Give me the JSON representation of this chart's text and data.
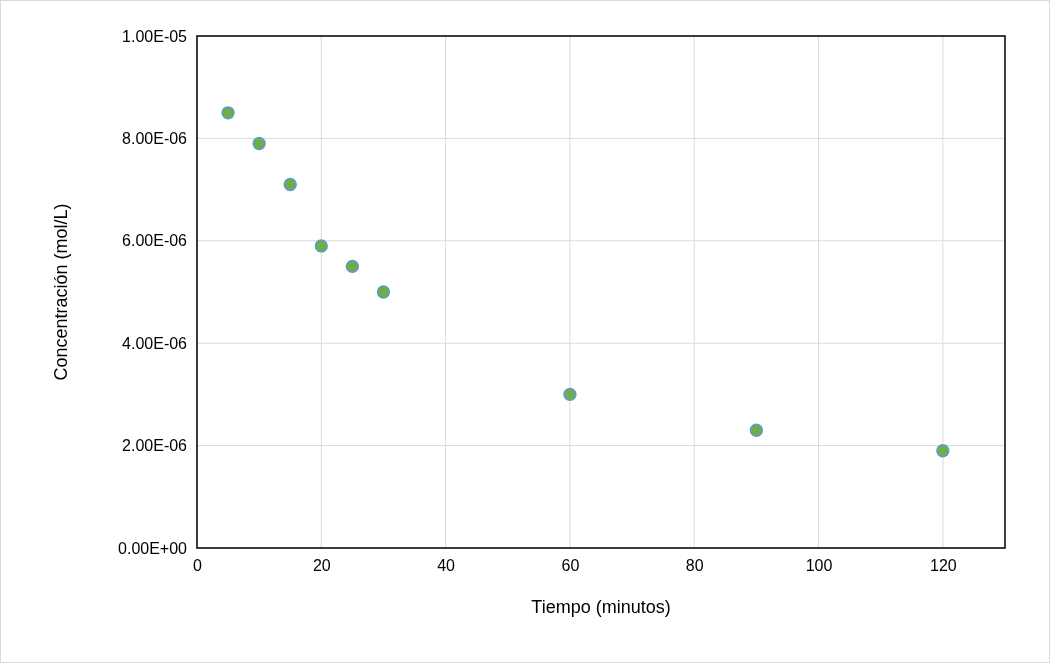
{
  "chart_data": {
    "type": "scatter",
    "xlabel": "Tiempo (minutos)",
    "ylabel": "Concentración (mol/L)",
    "x": [
      5,
      10,
      15,
      20,
      25,
      30,
      60,
      90,
      120
    ],
    "series": [
      {
        "color": "#70ad47",
        "values": [
          8.5e-06,
          7.9e-06,
          7.1e-06,
          5.9e-06,
          5.5e-06,
          5e-06,
          3e-06,
          2.3e-06,
          1.9e-06
        ]
      }
    ],
    "xlim": [
      0,
      130
    ],
    "xticks": [
      0,
      20,
      40,
      60,
      80,
      100,
      120
    ],
    "ylim": [
      0,
      1e-05
    ],
    "yticks": [
      {
        "value": 0,
        "label": "0.00E+00"
      },
      {
        "value": 2e-06,
        "label": "2.00E-06"
      },
      {
        "value": 4e-06,
        "label": "4.00E-06"
      },
      {
        "value": 6e-06,
        "label": "6.00E-06"
      },
      {
        "value": 8e-06,
        "label": "8.00E-06"
      },
      {
        "value": 1e-05,
        "label": "1.00E-05"
      }
    ],
    "grid": true,
    "marker": "circle"
  }
}
